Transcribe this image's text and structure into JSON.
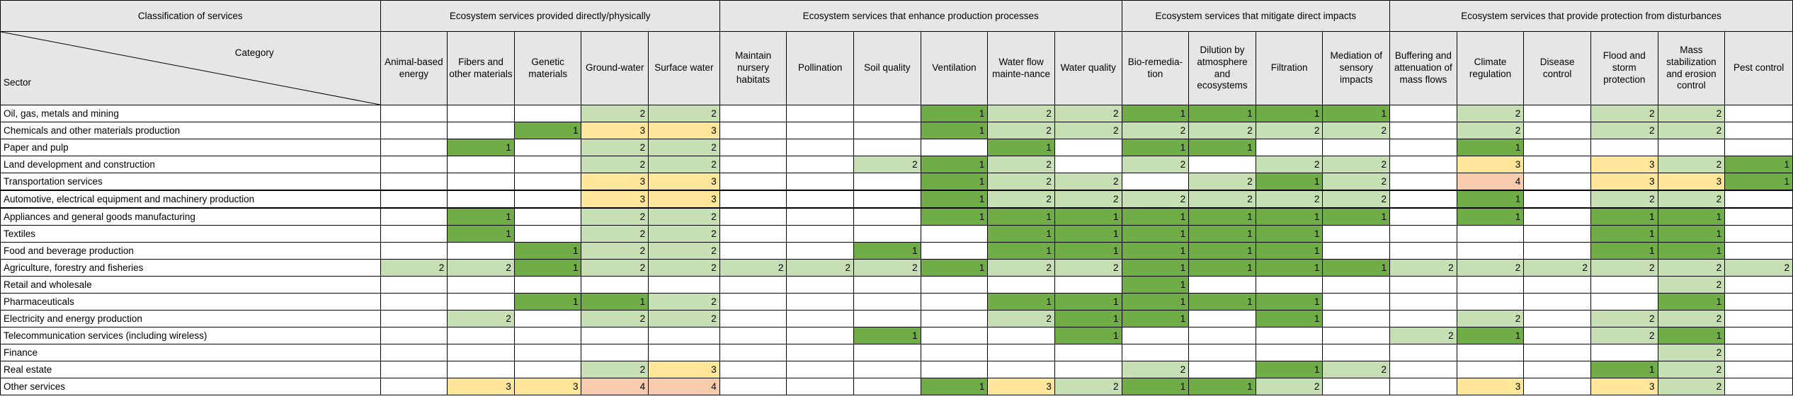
{
  "header": {
    "classification": "Classification of services",
    "category": "Category",
    "sector": "Sector",
    "groups": [
      {
        "label": "Ecosystem services provided directly/physically",
        "span": 5
      },
      {
        "label": "Ecosystem services that enhance production processes",
        "span": 6
      },
      {
        "label": "Ecosystem services that mitigate direct impacts",
        "span": 4
      },
      {
        "label": "Ecosystem services that provide protection from disturbances",
        "span": 6
      }
    ],
    "columns": [
      "Animal-based energy",
      "Fibers and other materials",
      "Genetic materials",
      "Ground-water",
      "Surface water",
      "Maintain nursery habitats",
      "Pollination",
      "Soil quality",
      "Ventilation",
      "Water flow mainte-nance",
      "Water quality",
      "Bio-remedia-tion",
      "Dilution by atmosphere and ecosystems",
      "Filtration",
      "Mediation of sensory impacts",
      "Buffering and attenuation of mass flows",
      "Climate regulation",
      "Disease control",
      "Flood and storm protection",
      "Mass stabilization and erosion control",
      "Pest control"
    ]
  },
  "rows": [
    {
      "sector": "Oil, gas, metals and mining",
      "values": [
        null,
        null,
        null,
        2,
        2,
        null,
        null,
        null,
        1,
        2,
        2,
        1,
        1,
        1,
        1,
        null,
        2,
        null,
        2,
        2,
        null
      ]
    },
    {
      "sector": "Chemicals and other materials production",
      "values": [
        null,
        null,
        1,
        3,
        3,
        null,
        null,
        null,
        1,
        2,
        2,
        2,
        2,
        2,
        2,
        null,
        2,
        null,
        2,
        2,
        null
      ]
    },
    {
      "sector": "Paper and pulp",
      "values": [
        null,
        1,
        null,
        2,
        2,
        null,
        null,
        null,
        null,
        1,
        null,
        1,
        1,
        null,
        null,
        null,
        1,
        null,
        null,
        null,
        null
      ]
    },
    {
      "sector": "Land development and construction",
      "values": [
        null,
        null,
        null,
        2,
        2,
        null,
        null,
        2,
        1,
        2,
        null,
        2,
        null,
        2,
        2,
        null,
        3,
        null,
        3,
        2,
        1
      ]
    },
    {
      "sector": "Transportation services",
      "values": [
        null,
        null,
        null,
        3,
        3,
        null,
        null,
        null,
        1,
        2,
        2,
        null,
        2,
        1,
        2,
        null,
        4,
        null,
        3,
        3,
        1
      ]
    },
    {
      "sector": "Automotive, electrical equipment and machinery production",
      "values": [
        null,
        null,
        null,
        3,
        3,
        null,
        null,
        null,
        1,
        2,
        2,
        2,
        2,
        2,
        2,
        null,
        1,
        null,
        2,
        2,
        null
      ]
    },
    {
      "sector": "Appliances and general goods manufacturing",
      "values": [
        null,
        1,
        null,
        2,
        2,
        null,
        null,
        null,
        1,
        1,
        1,
        1,
        1,
        1,
        1,
        null,
        1,
        null,
        1,
        1,
        null
      ]
    },
    {
      "sector": "Textiles",
      "values": [
        null,
        1,
        null,
        2,
        2,
        null,
        null,
        null,
        null,
        1,
        1,
        1,
        1,
        1,
        null,
        null,
        null,
        null,
        1,
        1,
        null
      ]
    },
    {
      "sector": "Food and beverage production",
      "values": [
        null,
        null,
        1,
        2,
        2,
        null,
        null,
        1,
        null,
        1,
        1,
        1,
        1,
        1,
        null,
        null,
        null,
        null,
        1,
        1,
        null
      ]
    },
    {
      "sector": "Agriculture, forestry and fisheries",
      "values": [
        2,
        2,
        1,
        2,
        2,
        2,
        2,
        2,
        1,
        2,
        2,
        1,
        1,
        1,
        1,
        2,
        2,
        2,
        2,
        2,
        2
      ]
    },
    {
      "sector": "Retail and wholesale",
      "values": [
        null,
        null,
        null,
        null,
        null,
        null,
        null,
        null,
        null,
        null,
        null,
        1,
        null,
        null,
        null,
        null,
        null,
        null,
        null,
        2,
        null
      ]
    },
    {
      "sector": "Pharmaceuticals",
      "values": [
        null,
        null,
        1,
        1,
        2,
        null,
        null,
        null,
        null,
        1,
        1,
        1,
        1,
        1,
        null,
        null,
        null,
        null,
        null,
        1,
        null
      ]
    },
    {
      "sector": "Electricity and energy production",
      "values": [
        null,
        2,
        null,
        2,
        2,
        null,
        null,
        null,
        null,
        2,
        1,
        1,
        null,
        1,
        null,
        null,
        2,
        null,
        2,
        2,
        null
      ]
    },
    {
      "sector": "Telecommunication services (including wireless)",
      "values": [
        null,
        null,
        null,
        null,
        null,
        null,
        null,
        1,
        null,
        null,
        1,
        null,
        null,
        null,
        null,
        2,
        1,
        null,
        2,
        1,
        null
      ]
    },
    {
      "sector": "Finance",
      "values": [
        null,
        null,
        null,
        null,
        null,
        null,
        null,
        null,
        null,
        null,
        null,
        null,
        null,
        null,
        null,
        null,
        null,
        null,
        null,
        2,
        null
      ]
    },
    {
      "sector": "Real estate",
      "values": [
        null,
        null,
        null,
        2,
        3,
        null,
        null,
        null,
        null,
        null,
        null,
        2,
        null,
        1,
        2,
        null,
        null,
        null,
        1,
        2,
        null
      ]
    },
    {
      "sector": "Other services",
      "values": [
        null,
        3,
        3,
        4,
        4,
        null,
        null,
        null,
        1,
        3,
        2,
        1,
        1,
        2,
        null,
        null,
        3,
        null,
        3,
        2,
        null
      ]
    }
  ],
  "colors": {
    "1": "#70ad47",
    "2": "#c6e0b4",
    "3": "#ffe699",
    "4": "#f8cbad",
    "header": "#e6e6e6"
  }
}
